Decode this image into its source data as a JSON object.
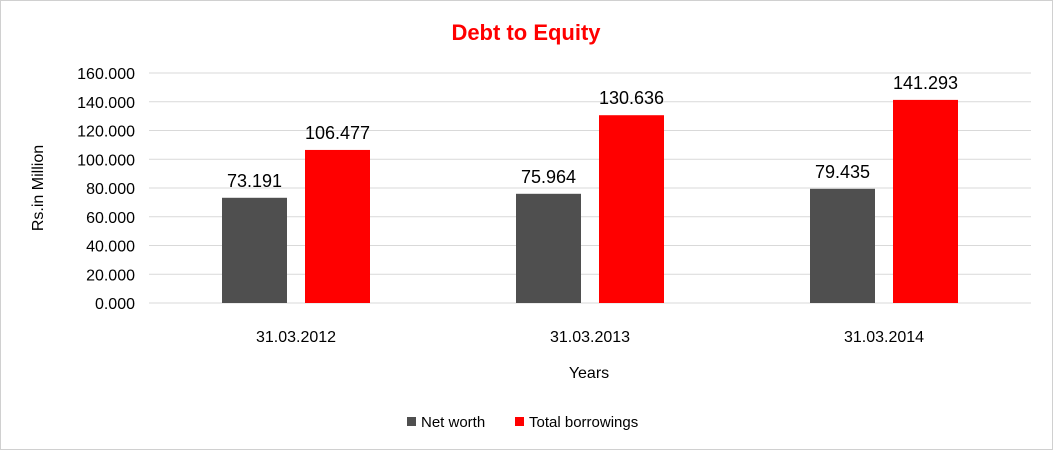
{
  "chart_data": {
    "type": "bar",
    "title": "Debt to Equity",
    "xlabel": "Years",
    "ylabel": "Rs.in Million",
    "categories": [
      "31.03.2012",
      "31.03.2013",
      "31.03.2014"
    ],
    "series": [
      {
        "name": "Net worth",
        "values": [
          73.191,
          75.964,
          79.435
        ],
        "labels": [
          "73.191",
          "75.964",
          "79.435"
        ],
        "color": "#4f4f4f"
      },
      {
        "name": "Total borrowings",
        "values": [
          106.477,
          130.636,
          141.293
        ],
        "labels": [
          "106.477",
          "130.636",
          "141.293"
        ],
        "color": "#ff0000"
      }
    ],
    "ylim": [
      0,
      160
    ],
    "yticks": [
      "0.000",
      "20.000",
      "40.000",
      "60.000",
      "80.000",
      "100.000",
      "120.000",
      "140.000",
      "160.000"
    ],
    "grid": true,
    "legend": "bottom",
    "title_color": "#ff0000"
  }
}
